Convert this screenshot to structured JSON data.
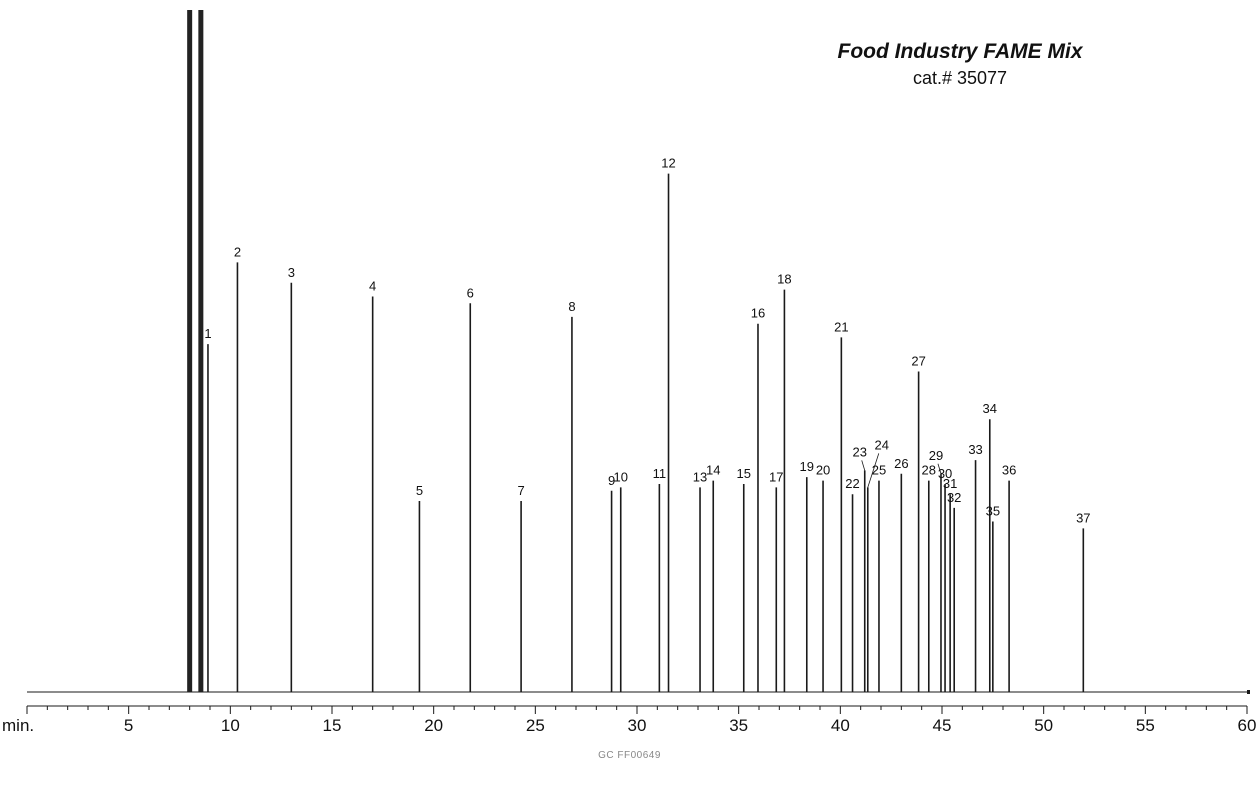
{
  "chart_data": {
    "type": "line",
    "title": "Food Industry FAME Mix",
    "subtitle": "cat.# 35077",
    "xlabel": "min.",
    "ylabel": "",
    "xlim": [
      0,
      60
    ],
    "xticks": [
      5,
      10,
      15,
      20,
      25,
      30,
      35,
      40,
      45,
      50,
      55,
      60
    ],
    "xtick_labels": [
      "5",
      "10",
      "15",
      "20",
      "25",
      "30",
      "35",
      "40",
      "45",
      "50",
      "55",
      "60"
    ],
    "ylim": [
      0,
      1
    ],
    "grid": false,
    "solvent_peaks": [
      {
        "time": 8.0,
        "height": 1.0
      },
      {
        "time": 8.55,
        "height": 1.0
      }
    ],
    "peaks": [
      {
        "label": "1",
        "time": 8.9,
        "height": 0.51
      },
      {
        "label": "2",
        "time": 10.35,
        "height": 0.63
      },
      {
        "label": "3",
        "time": 13.0,
        "height": 0.6
      },
      {
        "label": "4",
        "time": 17.0,
        "height": 0.58
      },
      {
        "label": "5",
        "time": 19.3,
        "height": 0.28
      },
      {
        "label": "6",
        "time": 21.8,
        "height": 0.57
      },
      {
        "label": "7",
        "time": 24.3,
        "height": 0.28
      },
      {
        "label": "8",
        "time": 26.8,
        "height": 0.55
      },
      {
        "label": "9",
        "time": 28.75,
        "height": 0.295
      },
      {
        "label": "10",
        "time": 29.2,
        "height": 0.3
      },
      {
        "label": "11",
        "time": 31.1,
        "height": 0.305
      },
      {
        "label": "12",
        "time": 31.55,
        "height": 0.76
      },
      {
        "label": "13",
        "time": 33.1,
        "height": 0.3
      },
      {
        "label": "14",
        "time": 33.75,
        "height": 0.31
      },
      {
        "label": "15",
        "time": 35.25,
        "height": 0.305
      },
      {
        "label": "16",
        "time": 35.95,
        "height": 0.54
      },
      {
        "label": "17",
        "time": 36.85,
        "height": 0.3
      },
      {
        "label": "18",
        "time": 37.25,
        "height": 0.59
      },
      {
        "label": "19",
        "time": 38.35,
        "height": 0.315
      },
      {
        "label": "20",
        "time": 39.15,
        "height": 0.31
      },
      {
        "label": "21",
        "time": 40.05,
        "height": 0.52
      },
      {
        "label": "22",
        "time": 40.6,
        "height": 0.29
      },
      {
        "label": "23",
        "time": 41.2,
        "height": 0.325
      },
      {
        "label": "24",
        "time": 41.35,
        "height": 0.3
      },
      {
        "label": "25",
        "time": 41.9,
        "height": 0.31
      },
      {
        "label": "26",
        "time": 43.0,
        "height": 0.32
      },
      {
        "label": "27",
        "time": 43.85,
        "height": 0.47
      },
      {
        "label": "28",
        "time": 44.35,
        "height": 0.31
      },
      {
        "label": "29",
        "time": 44.95,
        "height": 0.32
      },
      {
        "label": "30",
        "time": 45.15,
        "height": 0.305
      },
      {
        "label": "31",
        "time": 45.4,
        "height": 0.29
      },
      {
        "label": "32",
        "time": 45.6,
        "height": 0.27
      },
      {
        "label": "33",
        "time": 46.65,
        "height": 0.34
      },
      {
        "label": "34",
        "time": 47.35,
        "height": 0.4
      },
      {
        "label": "35",
        "time": 47.5,
        "height": 0.25
      },
      {
        "label": "36",
        "time": 48.3,
        "height": 0.31
      },
      {
        "label": "37",
        "time": 51.95,
        "height": 0.24
      }
    ],
    "label_positions": {
      "23": "left-leader",
      "24": "right-leader",
      "29": "left-leader"
    }
  },
  "footer": {
    "code": "GC  FF00649"
  },
  "colors": {
    "trace": "#1a1a1a",
    "text": "#111111",
    "footer": "#888888"
  }
}
